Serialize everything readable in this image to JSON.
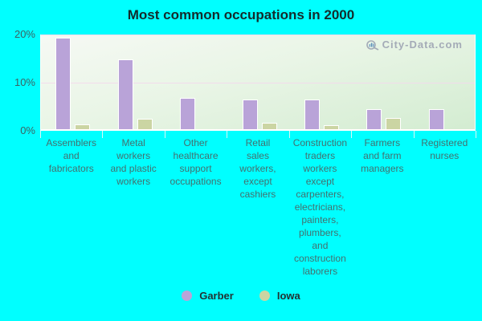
{
  "page": {
    "background_color": "#00ffff"
  },
  "title": "Most common occupations in 2000",
  "watermark": {
    "text": "City-Data.com",
    "icon": "magnifier-logo-icon",
    "color": "#a4abb7"
  },
  "legend": {
    "items": [
      {
        "label": "Garber",
        "color": "#b9a3d8"
      },
      {
        "label": "Iowa",
        "color": "#cbd5a3"
      }
    ]
  },
  "chart_data": {
    "type": "bar",
    "title": "Most common occupations in 2000",
    "categories": [
      "Assemblers and fabricators",
      "Metal workers and plastic workers",
      "Other healthcare support occupations",
      "Retail sales workers, except cashiers",
      "Construction traders workers except carpenters, electricians, painters, plumbers, and construction laborers",
      "Farmers and farm managers",
      "Registered nurses"
    ],
    "tick_labels": [
      "Assemblers\nand\nfabricators",
      "Metal\nworkers\nand plastic\nworkers",
      "Other\nhealthcare\nsupport\noccupations",
      "Retail\nsales\nworkers,\nexcept\ncashiers",
      "Construction\ntraders\nworkers\nexcept\ncarpenters,\nelectricians,\npainters,\nplumbers,\nand\nconstruction\nlaborers",
      "Farmers\nand farm\nmanagers",
      "Registered\nnurses"
    ],
    "series": [
      {
        "name": "Garber",
        "color": "#b9a3d8",
        "values": [
          19,
          14.5,
          6.5,
          6.2,
          6.2,
          4.1,
          4.2
        ]
      },
      {
        "name": "Iowa",
        "color": "#cbd5a3",
        "values": [
          1,
          2.2,
          0,
          1.3,
          0.9,
          2.4,
          0
        ]
      }
    ],
    "xlabel": "",
    "ylabel": "",
    "ylim": [
      0,
      20
    ],
    "yticks": [
      {
        "value": 0,
        "label": "0%"
      },
      {
        "value": 10,
        "label": "10%"
      },
      {
        "value": 20,
        "label": "20%"
      }
    ],
    "gridlines_at": [
      10,
      20
    ],
    "grid": "horizontal",
    "legend_position": "bottom",
    "plot_background": "green-white vertical gradient"
  }
}
